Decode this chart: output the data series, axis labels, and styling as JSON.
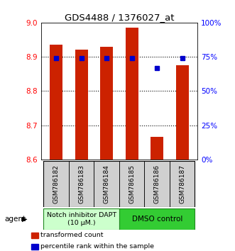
{
  "title": "GDS4488 / 1376027_at",
  "samples": [
    "GSM786182",
    "GSM786183",
    "GSM786184",
    "GSM786185",
    "GSM786186",
    "GSM786187"
  ],
  "bar_values": [
    8.935,
    8.92,
    8.93,
    8.985,
    8.665,
    8.875
  ],
  "percentile_values": [
    74,
    74,
    74,
    74,
    67,
    74
  ],
  "ymin": 8.6,
  "ymax": 9.0,
  "yticks": [
    8.6,
    8.7,
    8.8,
    8.9,
    9.0
  ],
  "right_yticks": [
    0,
    25,
    50,
    75,
    100
  ],
  "right_ylabels": [
    "0%",
    "25%",
    "50%",
    "75%",
    "100%"
  ],
  "bar_color": "#cc2200",
  "percentile_color": "#0000cc",
  "group1_label": "Notch inhibitor DAPT\n(10 μM.)",
  "group2_label": "DMSO control",
  "group1_color": "#ccffcc",
  "group2_color": "#33cc33",
  "agent_label": "agent",
  "legend_items": [
    "transformed count",
    "percentile rank within the sample"
  ],
  "bar_width": 0.5,
  "group1_count": 3,
  "group2_count": 3
}
